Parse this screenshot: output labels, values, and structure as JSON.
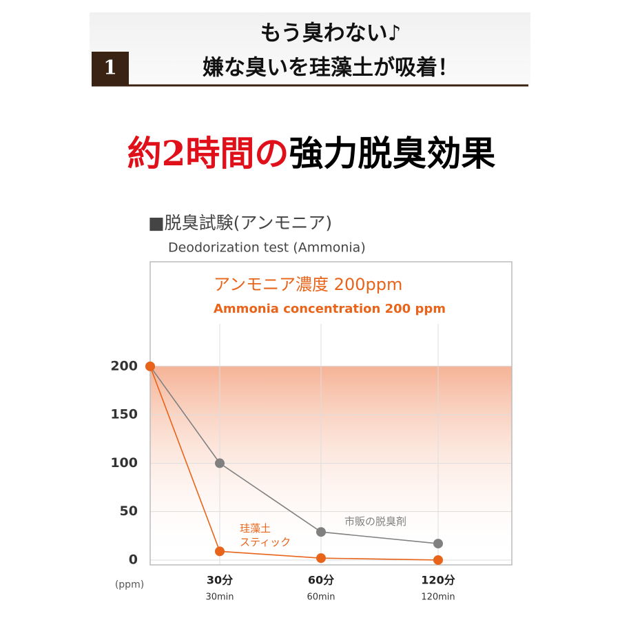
{
  "header": {
    "number": "1",
    "line1": "もう臭わない♪",
    "line2": "嫌な臭いを珪藻土が吸着！"
  },
  "headline": {
    "red": "約2時間の",
    "black": "強力脱臭効果"
  },
  "chart_data": {
    "type": "line",
    "title": "■脱臭試験(アンモニア)",
    "subtitle": "Deodorization test (Ammonia)",
    "annotation": "アンモニア濃度 200ppm",
    "annotation_en": "Ammonia concentration 200 ppm",
    "y_unit": "(ppm)",
    "categories": [
      null,
      "30分",
      "60分",
      "120分"
    ],
    "category_sublabels": [
      null,
      "30min",
      "60min",
      "120min"
    ],
    "series": [
      {
        "name": "市販の脱臭剤",
        "color": "#808080",
        "values": [
          200,
          100,
          29,
          17
        ]
      },
      {
        "name": "珪藻土\nスティック",
        "color": "#e8641a",
        "values": [
          200,
          9,
          2,
          0
        ]
      }
    ],
    "ylim": [
      -5,
      308
    ],
    "yticks": [
      0,
      50,
      100,
      150,
      200
    ],
    "grid": true,
    "band_value": 200
  }
}
